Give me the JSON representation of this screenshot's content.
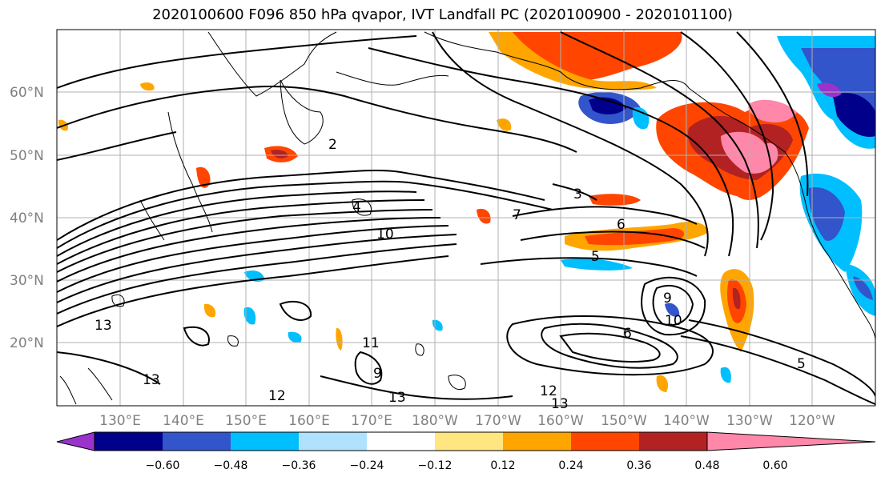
{
  "title": "2020100600 F096 850 hPa qvapor, IVT Landfall PC (2020100900 - 2020101100)",
  "lat_labels": [
    "60°N",
    "50°N",
    "40°N",
    "30°N",
    "20°N"
  ],
  "lon_labels": [
    "130°E",
    "140°E",
    "150°E",
    "160°E",
    "170°E",
    "180°W",
    "170°W",
    "160°W",
    "150°W",
    "140°W",
    "130°W",
    "120°W"
  ],
  "contour_labels": [
    "2",
    "3",
    "4",
    "5",
    "6",
    "9",
    "10",
    "10",
    "11",
    "12",
    "13",
    "13",
    "13",
    "13",
    "5",
    "6",
    "7",
    "9",
    "12"
  ],
  "colorbar": {
    "tick_labels": [
      "−0.60",
      "−0.48",
      "−0.36",
      "−0.24",
      "−0.12",
      "0.12",
      "0.24",
      "0.36",
      "0.48",
      "0.60"
    ],
    "colors": [
      "#9933cc",
      "#00008b",
      "#3355cc",
      "#00bfff",
      "#b0e2ff",
      "#ffffff",
      "#ffe680",
      "#ffa500",
      "#ff4500",
      "#b22222",
      "#ff88aa"
    ]
  }
}
